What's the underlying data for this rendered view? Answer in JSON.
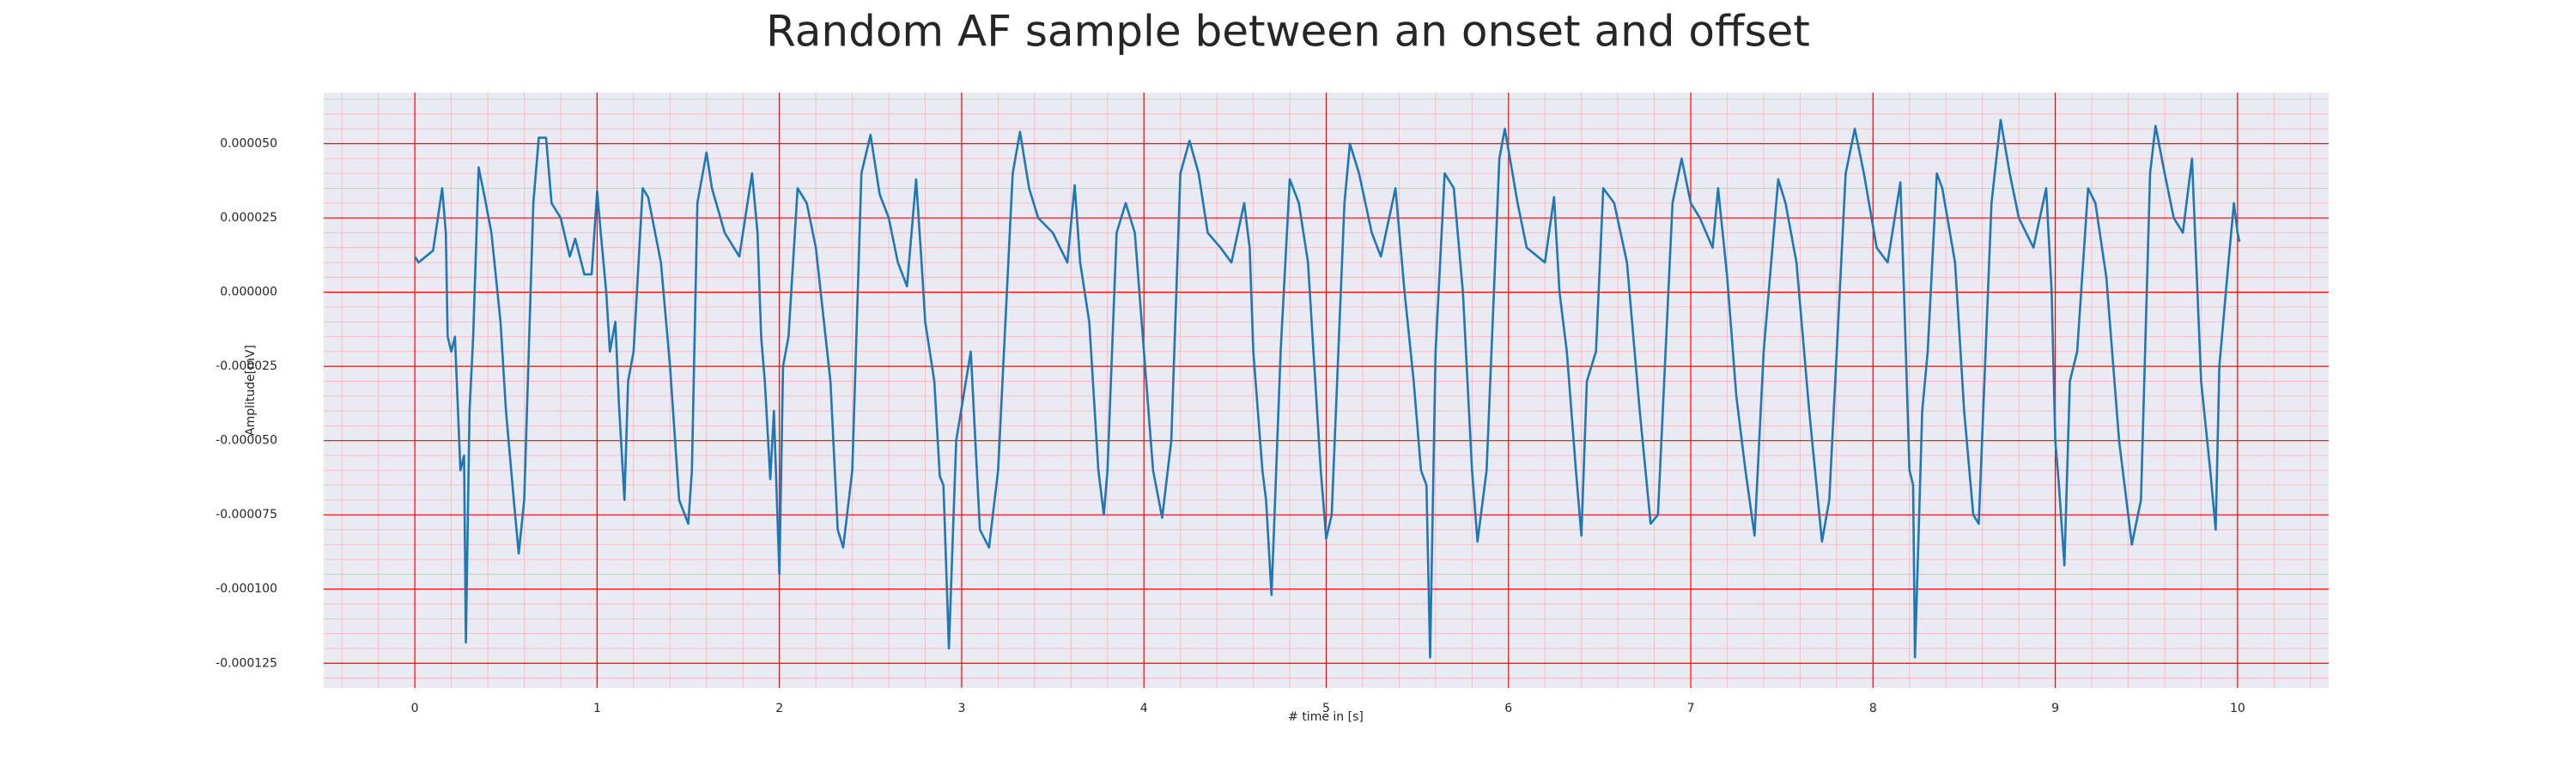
{
  "chart_data": {
    "type": "line",
    "title": "Random AF sample between an onset and offset",
    "xlabel": "# time in [s]",
    "ylabel": "Amplitude[mV]",
    "xlim": [
      -0.5,
      10.5
    ],
    "ylim": [
      -0.0001333,
      6.72e-05
    ],
    "xticks": [
      0,
      1,
      2,
      3,
      4,
      5,
      6,
      7,
      8,
      9,
      10
    ],
    "yticks": [
      {
        "value": 5e-05,
        "label": "0.000050"
      },
      {
        "value": 2.5e-05,
        "label": "0.000025"
      },
      {
        "value": 0,
        "label": "0.000000"
      },
      {
        "value": -2.5e-05,
        "label": "-0.000025"
      },
      {
        "value": -5e-05,
        "label": "-0.000050"
      },
      {
        "value": -7.5e-05,
        "label": "-0.000075"
      },
      {
        "value": -0.0001,
        "label": "-0.000100"
      },
      {
        "value": -0.000125,
        "label": "-0.000125"
      }
    ],
    "grid": true,
    "grid_color": "#ff0000",
    "minor_grid": true,
    "series": [
      {
        "color": "#1f77b4",
        "x": [
          0,
          0.02,
          0.06,
          0.1,
          0.15,
          0.17,
          0.18,
          0.2,
          0.22,
          0.25,
          0.27,
          0.28,
          0.3,
          0.32,
          0.35,
          0.38,
          0.42,
          0.47,
          0.5,
          0.55,
          0.57,
          0.6,
          0.65,
          0.68,
          0.72,
          0.75,
          0.8,
          0.85,
          0.88,
          0.93,
          0.97,
          1.0,
          1.02,
          1.05,
          1.07,
          1.1,
          1.12,
          1.15,
          1.17,
          1.2,
          1.25,
          1.28,
          1.35,
          1.4,
          1.45,
          1.5,
          1.52,
          1.55,
          1.6,
          1.63,
          1.7,
          1.78,
          1.85,
          1.88,
          1.9,
          1.92,
          1.95,
          1.97,
          2.0,
          2.02,
          2.05,
          2.1,
          2.15,
          2.2,
          2.28,
          2.32,
          2.35,
          2.4,
          2.45,
          2.5,
          2.55,
          2.6,
          2.65,
          2.7,
          2.75,
          2.78,
          2.8,
          2.85,
          2.88,
          2.9,
          2.93,
          2.97,
          3.05,
          3.1,
          3.15,
          3.2,
          3.28,
          3.32,
          3.37,
          3.42,
          3.5,
          3.58,
          3.62,
          3.65,
          3.7,
          3.75,
          3.78,
          3.8,
          3.85,
          3.9,
          3.95,
          4.0,
          4.05,
          4.1,
          4.15,
          4.2,
          4.25,
          4.3,
          4.35,
          4.42,
          4.48,
          4.55,
          4.58,
          4.6,
          4.65,
          4.67,
          4.7,
          4.75,
          4.8,
          4.85,
          4.9,
          4.97,
          5.0,
          5.03,
          5.1,
          5.13,
          5.18,
          5.25,
          5.3,
          5.38,
          5.43,
          5.48,
          5.52,
          5.55,
          5.57,
          5.6,
          5.65,
          5.7,
          5.75,
          5.8,
          5.83,
          5.88,
          5.95,
          5.98,
          6.05,
          6.1,
          6.2,
          6.25,
          6.28,
          6.32,
          6.37,
          6.4,
          6.43,
          6.48,
          6.52,
          6.58,
          6.65,
          6.72,
          6.78,
          6.82,
          6.9,
          6.95,
          7.0,
          7.05,
          7.12,
          7.15,
          7.2,
          7.25,
          7.3,
          7.35,
          7.4,
          7.48,
          7.52,
          7.58,
          7.65,
          7.72,
          7.76,
          7.85,
          7.9,
          7.95,
          8.02,
          8.08,
          8.15,
          8.17,
          8.2,
          8.22,
          8.23,
          8.27,
          8.3,
          8.35,
          8.38,
          8.45,
          8.5,
          8.55,
          8.58,
          8.65,
          8.7,
          8.75,
          8.8,
          8.88,
          8.95,
          8.98,
          9.0,
          9.02,
          9.05,
          9.08,
          9.12,
          9.18,
          9.22,
          9.28,
          9.35,
          9.42,
          9.47,
          9.52,
          9.55,
          9.6,
          9.65,
          9.7,
          9.75,
          9.78,
          9.8,
          9.85,
          9.88,
          9.9,
          9.95,
          9.98,
          10.0,
          10.01
        ],
        "values": [
          1.2e-05,
          1e-05,
          1.2e-05,
          1.4e-05,
          3.5e-05,
          2e-05,
          -1.5e-05,
          -2e-05,
          -1.5e-05,
          -6e-05,
          -5.5e-05,
          -0.000118,
          -4e-05,
          -1.5e-05,
          4.2e-05,
          3.3e-05,
          2e-05,
          -1e-05,
          -4e-05,
          -7.5e-05,
          -8.8e-05,
          -7e-05,
          3e-05,
          5.2e-05,
          5.2e-05,
          3e-05,
          2.5e-05,
          1.2e-05,
          1.8e-05,
          6e-06,
          6e-06,
          3.4e-05,
          2e-05,
          0,
          -2e-05,
          -1e-05,
          -3.8e-05,
          -7e-05,
          -3e-05,
          -2e-05,
          3.5e-05,
          3.2e-05,
          1e-05,
          -2.5e-05,
          -7e-05,
          -7.8e-05,
          -6e-05,
          3e-05,
          4.7e-05,
          3.5e-05,
          2e-05,
          1.2e-05,
          4e-05,
          2e-05,
          -1.5e-05,
          -3e-05,
          -6.3e-05,
          -4e-05,
          -9.5e-05,
          -2.5e-05,
          -1.5e-05,
          3.5e-05,
          3e-05,
          1.5e-05,
          -3e-05,
          -8e-05,
          -8.6e-05,
          -6e-05,
          4e-05,
          5.3e-05,
          3.3e-05,
          2.5e-05,
          1e-05,
          2e-06,
          3.8e-05,
          1e-05,
          -1e-05,
          -3e-05,
          -6.2e-05,
          -6.5e-05,
          -0.00012,
          -5e-05,
          -2e-05,
          -8e-05,
          -8.6e-05,
          -6e-05,
          4e-05,
          5.4e-05,
          3.5e-05,
          2.5e-05,
          2e-05,
          1e-05,
          3.6e-05,
          1e-05,
          -1e-05,
          -6e-05,
          -7.5e-05,
          -6e-05,
          2e-05,
          3e-05,
          2e-05,
          -2e-05,
          -6e-05,
          -7.6e-05,
          -5e-05,
          4e-05,
          5.1e-05,
          4e-05,
          2e-05,
          1.5e-05,
          1e-05,
          3e-05,
          1.5e-05,
          -2e-05,
          -6e-05,
          -7e-05,
          -0.000102,
          -2e-05,
          3.8e-05,
          3e-05,
          1e-05,
          -6e-05,
          -8.3e-05,
          -7.5e-05,
          3e-05,
          5e-05,
          4e-05,
          2e-05,
          1.2e-05,
          3.5e-05,
          0,
          -3e-05,
          -6e-05,
          -6.5e-05,
          -0.000123,
          -2e-05,
          4e-05,
          3.5e-05,
          0,
          -6e-05,
          -8.4e-05,
          -6e-05,
          4.5e-05,
          5.5e-05,
          3e-05,
          1.5e-05,
          1e-05,
          3.2e-05,
          0,
          -2e-05,
          -6e-05,
          -8.2e-05,
          -3e-05,
          -2e-05,
          3.5e-05,
          3e-05,
          1e-05,
          -4e-05,
          -7.8e-05,
          -7.5e-05,
          3e-05,
          4.5e-05,
          3e-05,
          2.5e-05,
          1.5e-05,
          3.5e-05,
          5e-06,
          -3.5e-05,
          -6e-05,
          -8.2e-05,
          -2e-05,
          3.8e-05,
          3e-05,
          1e-05,
          -4e-05,
          -8.4e-05,
          -7e-05,
          4e-05,
          5.5e-05,
          4e-05,
          1.5e-05,
          1e-05,
          3.7e-05,
          0,
          -6e-05,
          -6.5e-05,
          -0.000123,
          -4e-05,
          -2e-05,
          4e-05,
          3.5e-05,
          1e-05,
          -4e-05,
          -7.5e-05,
          -7.8e-05,
          3e-05,
          5.8e-05,
          4e-05,
          2.5e-05,
          1.5e-05,
          3.5e-05,
          0,
          -5e-05,
          -6.5e-05,
          -9.2e-05,
          -3e-05,
          -2e-05,
          3.5e-05,
          3e-05,
          5e-06,
          -5e-05,
          -8.5e-05,
          -7e-05,
          4e-05,
          5.6e-05,
          4e-05,
          2.5e-05,
          2e-05,
          4.5e-05,
          0,
          -3e-05,
          -6e-05,
          -8e-05,
          -2.5e-05,
          1e-05,
          3e-05,
          2e-05,
          1.7e-05
        ]
      }
    ]
  }
}
